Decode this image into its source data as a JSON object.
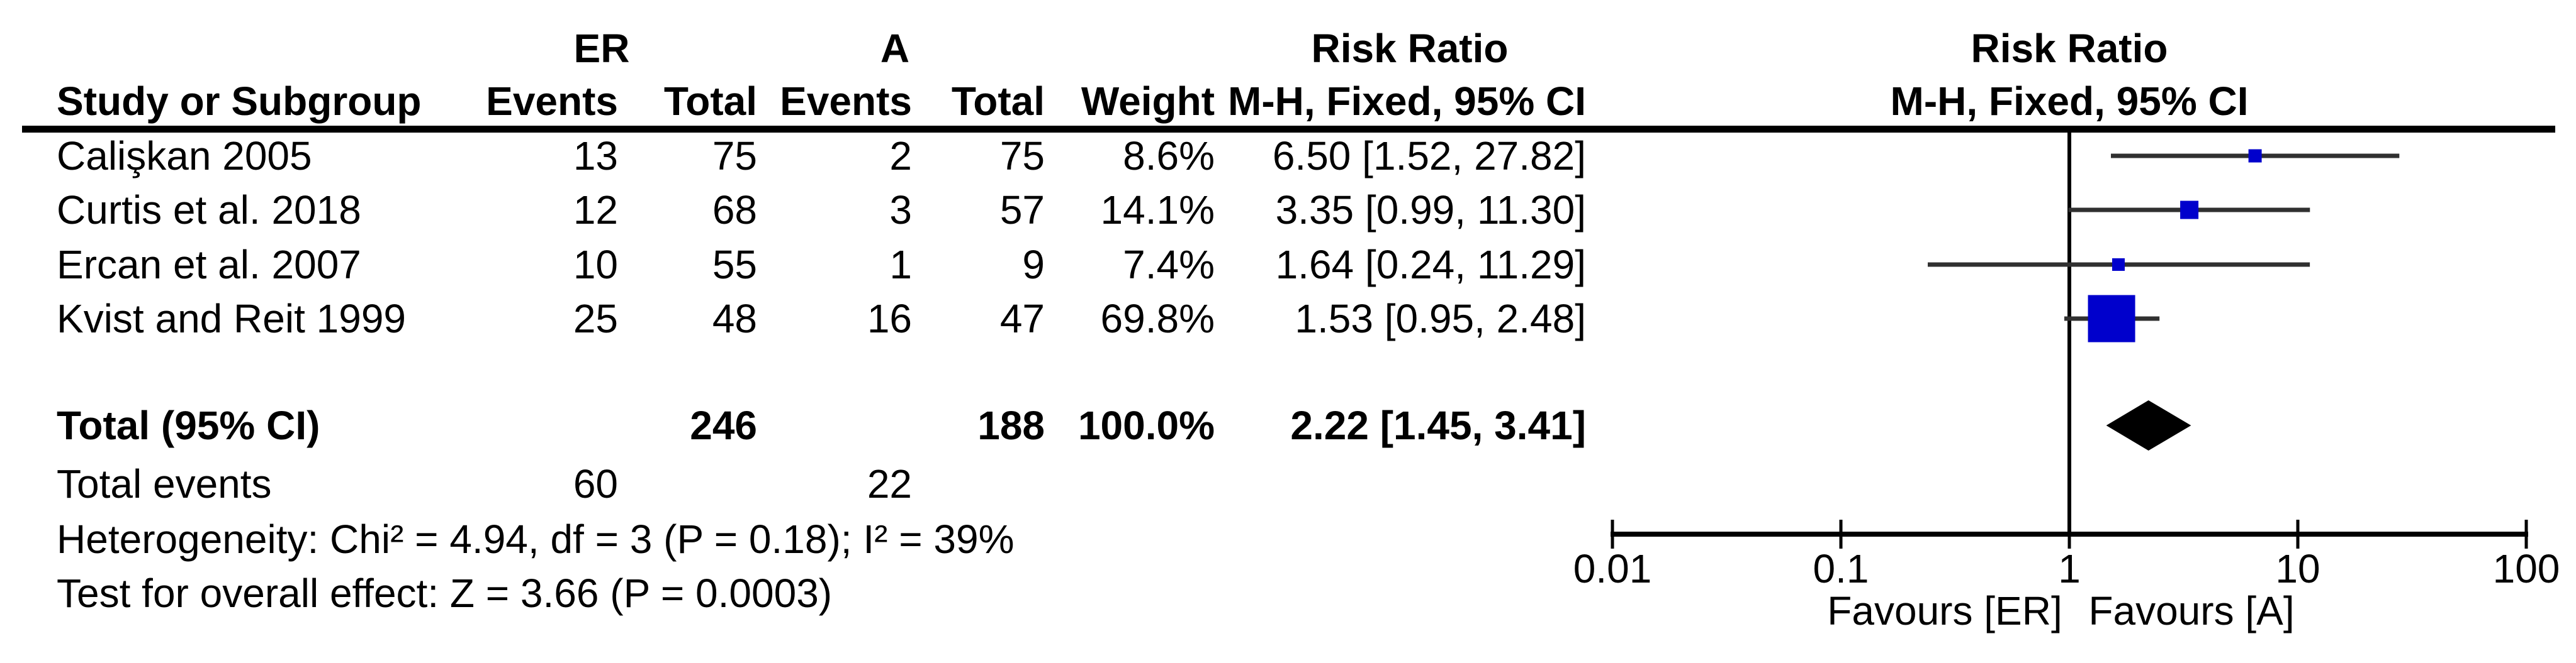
{
  "header": {
    "group_er": "ER",
    "group_a": "A",
    "risk_ratio_text_col": "Risk Ratio",
    "risk_ratio_plot_col": "Risk Ratio",
    "study": "Study or Subgroup",
    "er_events": "Events",
    "er_total": "Total",
    "a_events": "Events",
    "a_total": "Total",
    "weight": "Weight",
    "mh_text_col": "M-H, Fixed, 95% CI",
    "mh_plot_col": "M-H, Fixed, 95% CI"
  },
  "colors": {
    "marker_blue": "#0000CC",
    "diamond_black": "#000000",
    "axis_black": "#000000",
    "ci_line": "#303030"
  },
  "chart_data": {
    "type": "scatter",
    "variant": "forest-plot-meta-analysis",
    "effect_measure": "Risk Ratio",
    "method": "M-H, Fixed, 95% CI",
    "x_scale": "log10",
    "xlim": [
      0.01,
      100
    ],
    "x_ticks": [
      0.01,
      0.1,
      1,
      10,
      100
    ],
    "x_tick_labels": [
      "0.01",
      "0.1",
      "1",
      "10",
      "100"
    ],
    "axis_labels": {
      "favours_left": "Favours [ER]",
      "favours_right": "Favours [A]"
    },
    "studies": [
      {
        "name": "Calişkan 2005",
        "er_events": 13,
        "er_total": 75,
        "a_events": 2,
        "a_total": 75,
        "weight_label": "8.6%",
        "weight_pct": 8.6,
        "rr": 6.5,
        "ci_low": 1.52,
        "ci_high": 27.82,
        "ci_label": "6.50 [1.52, 27.82]"
      },
      {
        "name": "Curtis et al. 2018",
        "er_events": 12,
        "er_total": 68,
        "a_events": 3,
        "a_total": 57,
        "weight_label": "14.1%",
        "weight_pct": 14.1,
        "rr": 3.35,
        "ci_low": 0.99,
        "ci_high": 11.3,
        "ci_label": "3.35 [0.99, 11.30]"
      },
      {
        "name": "Ercan et al. 2007",
        "er_events": 10,
        "er_total": 55,
        "a_events": 1,
        "a_total": 9,
        "weight_label": "7.4%",
        "weight_pct": 7.4,
        "rr": 1.64,
        "ci_low": 0.24,
        "ci_high": 11.29,
        "ci_label": "1.64 [0.24, 11.29]"
      },
      {
        "name": "Kvist and Reit 1999",
        "er_events": 25,
        "er_total": 48,
        "a_events": 16,
        "a_total": 47,
        "weight_label": "69.8%",
        "weight_pct": 69.8,
        "rr": 1.53,
        "ci_low": 0.95,
        "ci_high": 2.48,
        "ci_label": "1.53 [0.95, 2.48]"
      }
    ],
    "total": {
      "label": "Total (95% CI)",
      "er_total": 246,
      "a_total": 188,
      "weight_label": "100.0%",
      "rr": 2.22,
      "ci_low": 1.45,
      "ci_high": 3.41,
      "ci_label": "2.22 [1.45, 3.41]"
    },
    "total_events": {
      "label": "Total events",
      "er_events": 60,
      "a_events": 22
    },
    "footnotes": {
      "heterogeneity": "Heterogeneity: Chi² = 4.94, df = 3 (P = 0.18); I² = 39%",
      "overall_effect": "Test for overall effect: Z = 3.66 (P = 0.0003)"
    }
  }
}
